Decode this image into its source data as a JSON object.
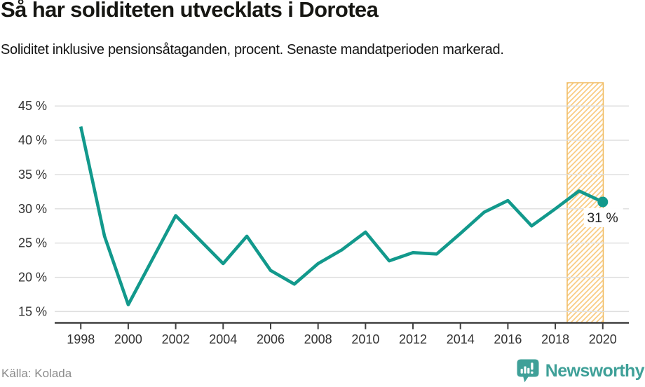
{
  "header": {
    "title": "Så har soliditeten utvecklats i Dorotea",
    "subtitle": "Soliditet inklusive pensionsåtaganden, procent. Senaste mandatperioden markerad."
  },
  "chart_data": {
    "type": "line",
    "title": "Så har soliditeten utvecklats i Dorotea",
    "subtitle": "Soliditet inklusive pensionsåtaganden, procent. Senaste mandatperioden markerad.",
    "unit": "%",
    "x": [
      1998,
      1999,
      2000,
      2001,
      2002,
      2003,
      2004,
      2005,
      2006,
      2007,
      2008,
      2009,
      2010,
      2011,
      2012,
      2013,
      2014,
      2015,
      2016,
      2017,
      2018,
      2019,
      2020
    ],
    "values": [
      42,
      26,
      16,
      22.5,
      29,
      25.5,
      22,
      26,
      21,
      19,
      22,
      24,
      26.6,
      22.4,
      23.6,
      23.4,
      26.4,
      29.5,
      31.2,
      27.5,
      30,
      32.6,
      31
    ],
    "xticks": [
      1998,
      2000,
      2002,
      2004,
      2006,
      2008,
      2010,
      2012,
      2014,
      2016,
      2018,
      2020
    ],
    "yticks": [
      15,
      20,
      25,
      30,
      35,
      40,
      45
    ],
    "ytick_format": "{v} %",
    "xlim": [
      1996.9,
      2021.1
    ],
    "ylim": [
      13.3,
      48.4
    ],
    "grid": true,
    "legend": false,
    "highlight_band": {
      "x_from": 2018.5,
      "x_to": 2020.02,
      "style": "diagonal-hatch"
    },
    "annotation": {
      "x": 2020,
      "y": 31,
      "label": "31 %"
    },
    "end_marker": true
  },
  "footer": {
    "source": "Källa: Kolada",
    "brand": "Newsworthy"
  },
  "icons": {
    "brand_icon": "newsworthy-chart-bubble-icon"
  },
  "colors": {
    "line": "#12998c",
    "marker": "#12998c",
    "band_hatch": "#f9ca7e",
    "band_border": "#f0bb61",
    "grid": "#dedede",
    "axis": "#3f3f3f",
    "tick_label": "#333333",
    "title": "#161612",
    "annotation_text": "#222222",
    "annotation_bg": "#ffffff",
    "source_text": "#8b8b8b",
    "brand": "#3fa098"
  }
}
